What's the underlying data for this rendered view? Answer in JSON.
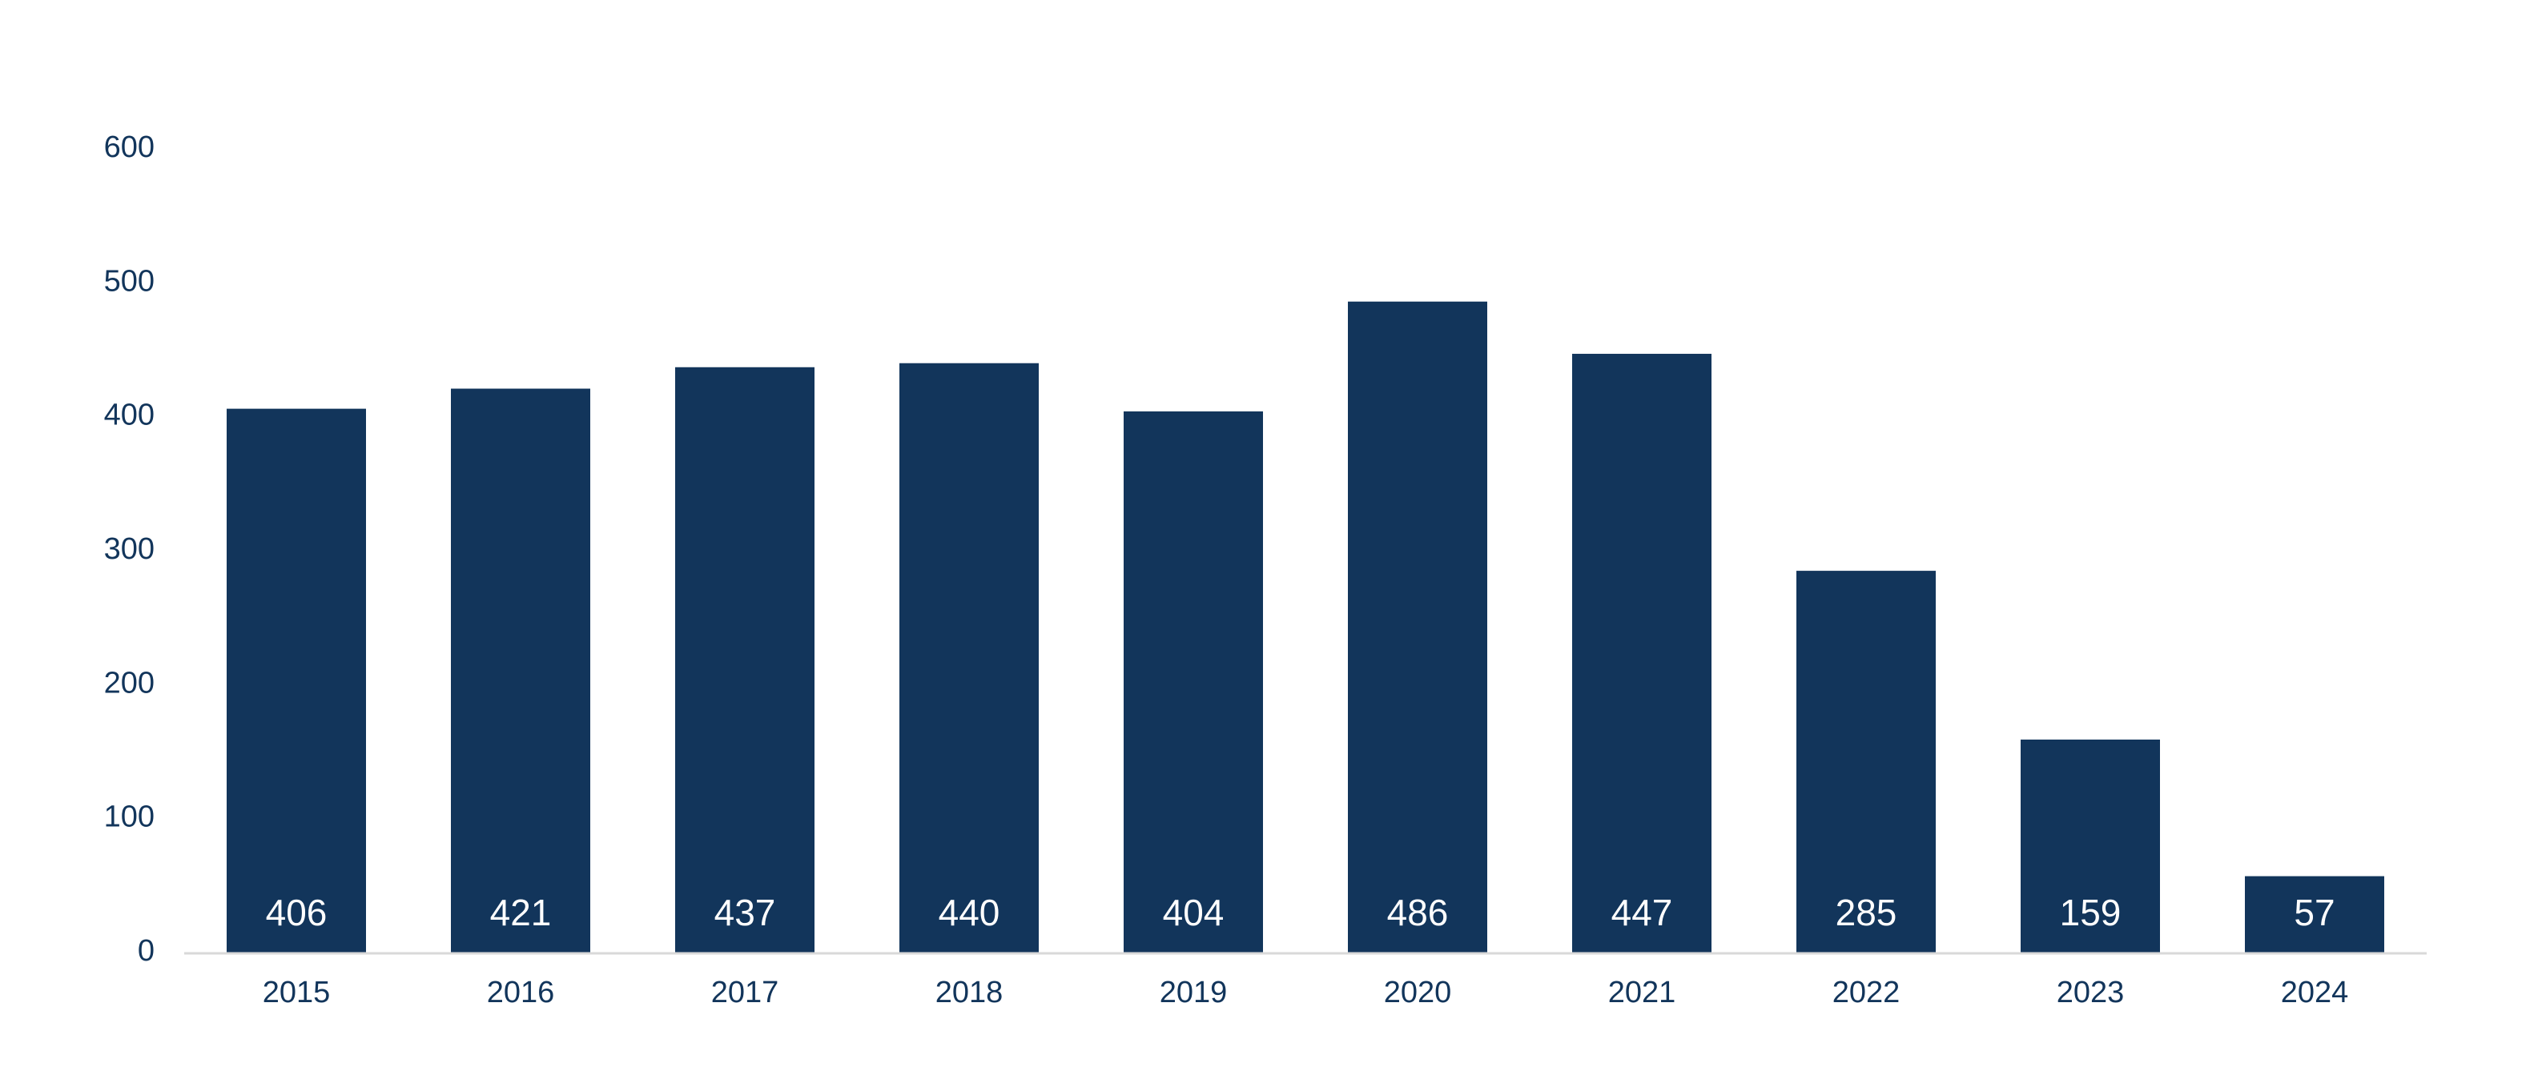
{
  "colors": {
    "bar": "#12355b",
    "text": "#12355b",
    "data_label": "#ffffff",
    "axis_line": "#d9d9d9",
    "background": "#ffffff"
  },
  "chart_data": {
    "type": "bar",
    "title": "",
    "xlabel": "",
    "ylabel": "",
    "categories": [
      "2015",
      "2016",
      "2017",
      "2018",
      "2019",
      "2020",
      "2021",
      "2022",
      "2023",
      "2024"
    ],
    "values": [
      406,
      421,
      437,
      440,
      404,
      486,
      447,
      285,
      159,
      57
    ],
    "value_labels": [
      "406",
      "421",
      "437",
      "440",
      "404",
      "486",
      "447",
      "285",
      "159",
      "57"
    ],
    "ylim": [
      0,
      600
    ],
    "y_ticks": [
      0,
      100,
      200,
      300,
      400,
      500,
      600
    ],
    "y_tick_labels": [
      "0",
      "100",
      "200",
      "300",
      "400",
      "500",
      "600"
    ],
    "grid": false,
    "legend": "none",
    "data_label_position": "inside-bottom"
  }
}
